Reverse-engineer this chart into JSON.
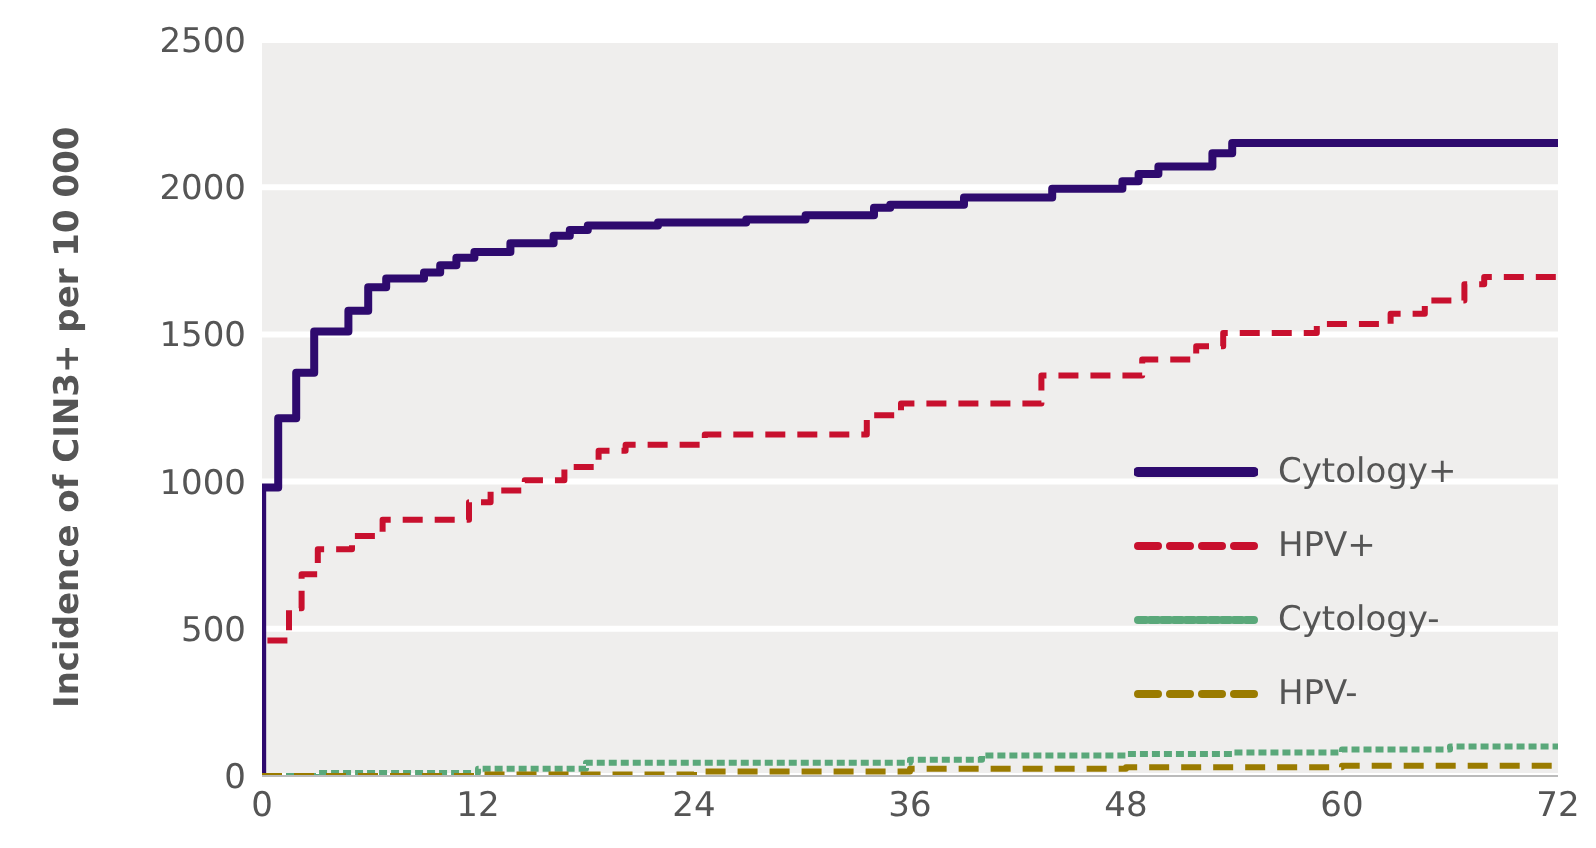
{
  "chart_data": {
    "type": "step",
    "ylabel": "Incidence of CIN3+ per 10 000",
    "xlim": [
      0,
      72
    ],
    "xticks": [
      0,
      12,
      24,
      36,
      48,
      60,
      72
    ],
    "ylim": [
      0,
      2500
    ],
    "yticks": [
      0,
      500,
      1000,
      1500,
      2000,
      2500
    ],
    "grid": "y",
    "legend": "right",
    "marker": "none",
    "series": [
      {
        "name": "Cytology+",
        "color": "#2e0a6e",
        "line_style": "solid",
        "x": [
          0,
          0.01,
          0.9,
          1.9,
          2.9,
          4.8,
          5.9,
          6.9,
          9,
          9.9,
          10.8,
          11.8,
          13.8,
          16.2,
          17.1,
          18.1,
          22,
          26.9,
          30.2,
          34,
          34.9,
          39,
          43.9,
          47.8,
          48.7,
          49.8,
          52.8,
          53.9,
          72
        ],
        "values": [
          0,
          980,
          1215,
          1370,
          1510,
          1580,
          1660,
          1690,
          1710,
          1735,
          1760,
          1780,
          1810,
          1835,
          1855,
          1870,
          1880,
          1890,
          1905,
          1930,
          1940,
          1965,
          1995,
          2020,
          2045,
          2070,
          2115,
          2150,
          2150
        ]
      },
      {
        "name": "HPV+",
        "color": "#c8102e",
        "line_style": "dashed",
        "x": [
          0.3,
          1.5,
          2.2,
          3.1,
          5,
          6.7,
          11.5,
          12.7,
          14.6,
          16.8,
          18.7,
          20.2,
          24.6,
          33.6,
          35.5,
          43.3,
          48.9,
          51.9,
          53.4,
          58.6,
          62.7,
          64.6,
          66.8,
          67.9,
          72
        ],
        "values": [
          460,
          570,
          685,
          770,
          815,
          870,
          930,
          970,
          1005,
          1050,
          1105,
          1125,
          1160,
          1225,
          1265,
          1360,
          1415,
          1460,
          1505,
          1535,
          1570,
          1615,
          1670,
          1695,
          1695
        ]
      },
      {
        "name": "Cytology-",
        "color": "#5aa87a",
        "line_style": "dotted",
        "x": [
          0,
          3,
          12,
          18,
          36,
          40,
          48,
          54,
          60,
          66,
          72
        ],
        "values": [
          0,
          10,
          25,
          45,
          55,
          70,
          75,
          80,
          90,
          100,
          105
        ]
      },
      {
        "name": "HPV-",
        "color": "#9a7b00",
        "line_style": "dashed",
        "x": [
          0,
          12,
          24,
          36,
          48,
          60,
          72
        ],
        "values": [
          0,
          5,
          15,
          25,
          30,
          35,
          35
        ]
      }
    ]
  }
}
